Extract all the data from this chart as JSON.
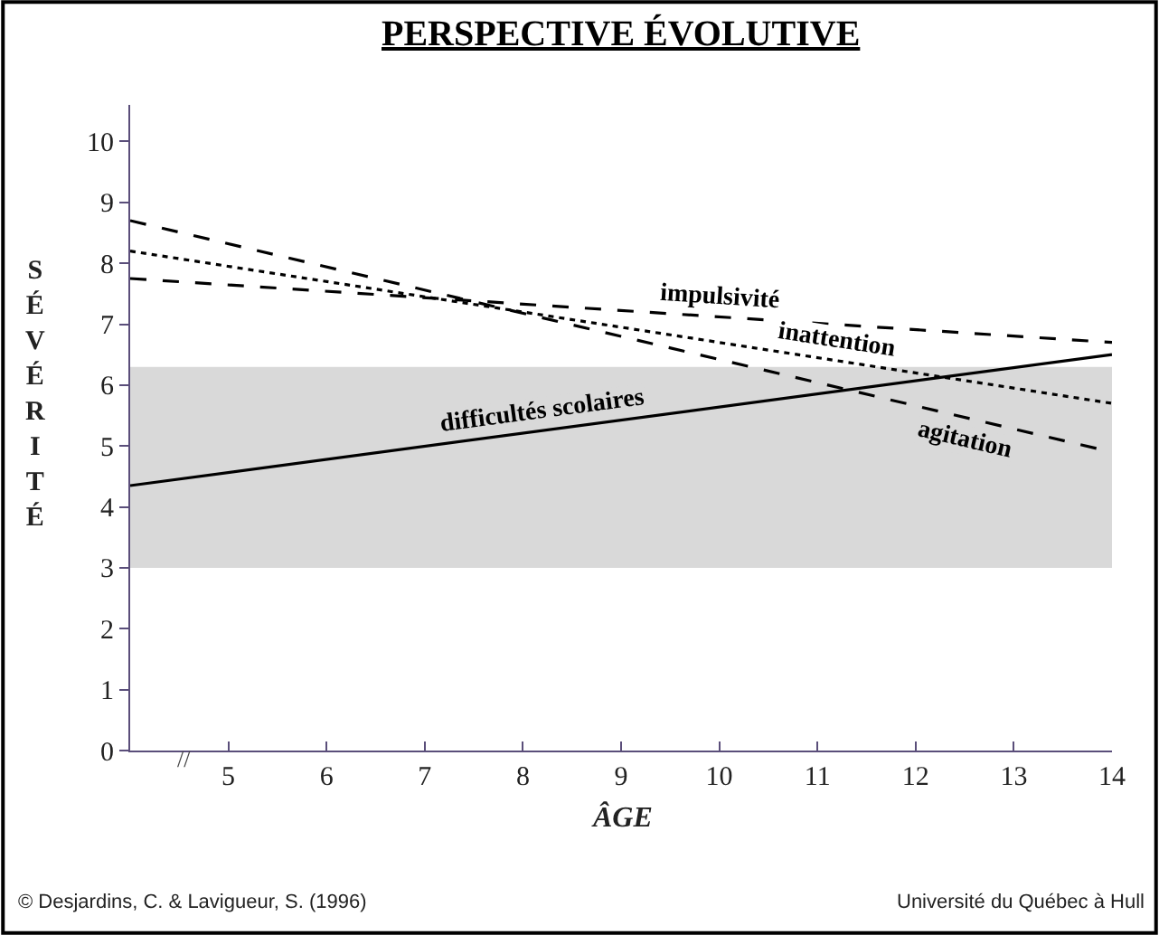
{
  "chart_data": {
    "type": "line",
    "title": "PERSPECTIVE ÉVOLUTIVE",
    "xlabel": "ÂGE",
    "ylabel": "SÉVÉRITÉ",
    "x": [
      4,
      14
    ],
    "series": [
      {
        "name": "agitation",
        "color": "#000000",
        "line_style": "dashed",
        "values": [
          8.7,
          4.9
        ]
      },
      {
        "name": "inattention",
        "color": "#000000",
        "line_style": "dotted",
        "values": [
          8.2,
          5.7
        ]
      },
      {
        "name": "impulsivité",
        "color": "#000000",
        "line_style": "dashed",
        "values": [
          7.75,
          6.7
        ]
      },
      {
        "name": "difficultés scolaires",
        "color": "#000000",
        "line_style": "solid",
        "values": [
          4.35,
          6.5
        ]
      }
    ],
    "bands": [
      {
        "axis": "y",
        "from": 3,
        "to": 6.3,
        "color": "#d9d9d9"
      }
    ],
    "xlim": [
      4,
      14
    ],
    "xticks": [
      5,
      6,
      7,
      8,
      9,
      10,
      11,
      12,
      13,
      14
    ],
    "ylim": [
      0,
      10.6
    ],
    "yticks": [
      0,
      1,
      2,
      3,
      4,
      5,
      6,
      7,
      8,
      9,
      10
    ],
    "grid": false,
    "legend": false,
    "marker": "none",
    "annotations": [
      "//",
      "© Desjardins, C. & Lavigueur, S. (1996)",
      "Université du Québec à Hull"
    ]
  }
}
